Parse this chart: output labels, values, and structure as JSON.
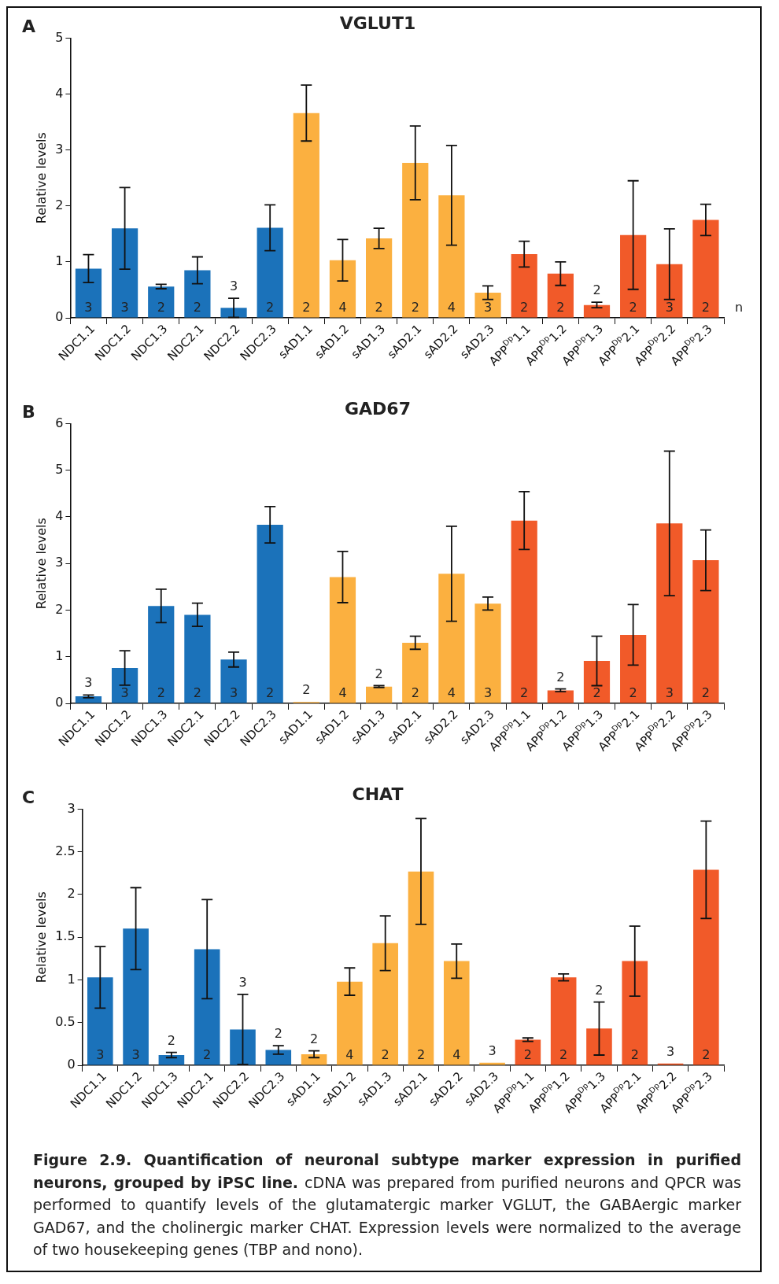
{
  "chart_data": [
    {
      "type": "bar",
      "title": "VGLUT1",
      "ylabel": "Relative levels",
      "categories": [
        "NDC1.1",
        "NDC1.2",
        "NDC1.3",
        "NDC2.1",
        "NDC2.2",
        "NDC2.3",
        "sAD1.1",
        "sAD1.2",
        "sAD1.3",
        "sAD2.1",
        "sAD2.2",
        "sAD2.3",
        "APP$^{Dp}$1.1",
        "APP$^{Dp}$1.2",
        "APP$^{Dp}$1.3",
        "APP$^{Dp}$2.1",
        "APP$^{Dp}$2.2",
        "APP$^{Dp}$2.3"
      ],
      "values": [
        0.88,
        1.6,
        0.56,
        0.85,
        0.18,
        1.61,
        3.66,
        1.03,
        1.42,
        2.77,
        2.19,
        0.45,
        1.14,
        0.79,
        0.23,
        1.48,
        0.96,
        1.75
      ],
      "errors": [
        0.25,
        0.73,
        0.04,
        0.24,
        0.17,
        0.41,
        0.5,
        0.37,
        0.18,
        0.66,
        0.89,
        0.12,
        0.23,
        0.21,
        0.05,
        0.97,
        0.63,
        0.28
      ],
      "colors": [
        "#1b72ba",
        "#1b72ba",
        "#1b72ba",
        "#1b72ba",
        "#1b72ba",
        "#1b72ba",
        "#fbb040",
        "#fbb040",
        "#fbb040",
        "#fbb040",
        "#fbb040",
        "#fbb040",
        "#f15a29",
        "#f15a29",
        "#f15a29",
        "#f15a29",
        "#f15a29",
        "#f15a29"
      ],
      "ylim": [
        0,
        5
      ],
      "yticks": [
        0,
        1,
        2,
        3,
        4,
        5
      ],
      "annotations": [
        "A",
        "3",
        "3",
        "2",
        "2",
        "3",
        "2",
        "2",
        "4",
        "2",
        "2",
        "4",
        "3",
        "2",
        "2",
        "2",
        "2",
        "3",
        "2",
        "n"
      ]
    },
    {
      "type": "bar",
      "title": "GAD67",
      "ylabel": "Relative levels",
      "categories": [
        "NDC1.1",
        "NDC1.2",
        "NDC1.3",
        "NDC2.1",
        "NDC2.2",
        "NDC2.3",
        "sAD1.1",
        "sAD1.2",
        "sAD1.3",
        "sAD2.1",
        "sAD2.2",
        "sAD2.3",
        "APP$^{Dp}$1.1",
        "APP$^{Dp}$1.2",
        "APP$^{Dp}$1.3",
        "APP$^{Dp}$2.1",
        "APP$^{Dp}$2.2",
        "APP$^{Dp}$2.3"
      ],
      "values": [
        0.15,
        0.76,
        2.09,
        1.9,
        0.94,
        3.83,
        0.03,
        2.71,
        0.36,
        1.3,
        2.78,
        2.14,
        3.92,
        0.28,
        0.91,
        1.47,
        3.86,
        3.07
      ],
      "errors": [
        0.03,
        0.37,
        0.36,
        0.25,
        0.16,
        0.39,
        null,
        0.55,
        0.02,
        0.14,
        1.02,
        0.14,
        0.62,
        0.03,
        0.53,
        0.65,
        1.55,
        0.65
      ],
      "colors": [
        "#1b72ba",
        "#1b72ba",
        "#1b72ba",
        "#1b72ba",
        "#1b72ba",
        "#1b72ba",
        "#fbb040",
        "#fbb040",
        "#fbb040",
        "#fbb040",
        "#fbb040",
        "#fbb040",
        "#f15a29",
        "#f15a29",
        "#f15a29",
        "#f15a29",
        "#f15a29",
        "#f15a29"
      ],
      "ylim": [
        0,
        6
      ],
      "yticks": [
        0,
        1,
        2,
        3,
        4,
        5,
        6
      ],
      "annotations": [
        "B",
        "3",
        "3",
        "2",
        "2",
        "3",
        "2",
        "2",
        "4",
        "2",
        "2",
        "4",
        "3",
        "2",
        "2",
        "2",
        "2",
        "3",
        "2"
      ]
    },
    {
      "type": "bar",
      "title": "CHAT",
      "ylabel": "Relative levels",
      "categories": [
        "NDC1.1",
        "NDC1.2",
        "NDC1.3",
        "NDC2.1",
        "NDC2.2",
        "NDC2.3",
        "sAD1.1",
        "sAD1.2",
        "sAD1.3",
        "sAD2.1",
        "sAD2.2",
        "sAD2.3",
        "APP$^{Dp}$1.1",
        "APP$^{Dp}$1.2",
        "APP$^{Dp}$1.3",
        "APP$^{Dp}$2.1",
        "APP$^{Dp}$2.2",
        "APP$^{Dp}$2.3"
      ],
      "values": [
        1.03,
        1.6,
        0.12,
        1.36,
        0.42,
        0.18,
        0.13,
        0.98,
        1.43,
        2.27,
        1.22,
        0.03,
        0.3,
        1.03,
        0.43,
        1.22,
        0.02,
        2.29
      ],
      "errors": [
        0.36,
        0.48,
        0.03,
        0.58,
        0.41,
        0.05,
        0.04,
        0.16,
        0.32,
        0.62,
        0.2,
        null,
        0.02,
        0.04,
        0.31,
        0.41,
        null,
        0.57
      ],
      "colors": [
        "#1b72ba",
        "#1b72ba",
        "#1b72ba",
        "#1b72ba",
        "#1b72ba",
        "#1b72ba",
        "#fbb040",
        "#fbb040",
        "#fbb040",
        "#fbb040",
        "#fbb040",
        "#fbb040",
        "#f15a29",
        "#f15a29",
        "#f15a29",
        "#f15a29",
        "#f15a29",
        "#f15a29"
      ],
      "ylim": [
        0,
        3
      ],
      "yticks": [
        0,
        0.5,
        1,
        1.5,
        2,
        2.5,
        3
      ],
      "annotations": [
        "C",
        "3",
        "3",
        "2",
        "2",
        "3",
        "2",
        "2",
        "4",
        "2",
        "2",
        "4",
        "3",
        "2",
        "2",
        "2",
        "2",
        "3",
        "2"
      ]
    },
    {
      "type": "other",
      "annotations": [
        "Figure 2.9. Quantification of neuronal subtype marker expression in purified neurons, grouped by iPSC line.",
        "cDNA was prepared from purified neurons and QPCR was performed to quantify levels of the glutamatergic marker VGLUT, the GABAergic marker GAD67, and the cholinergic marker CHAT. Expression levels were normalized to the average of two housekeeping genes (TBP and nono)."
      ]
    }
  ]
}
